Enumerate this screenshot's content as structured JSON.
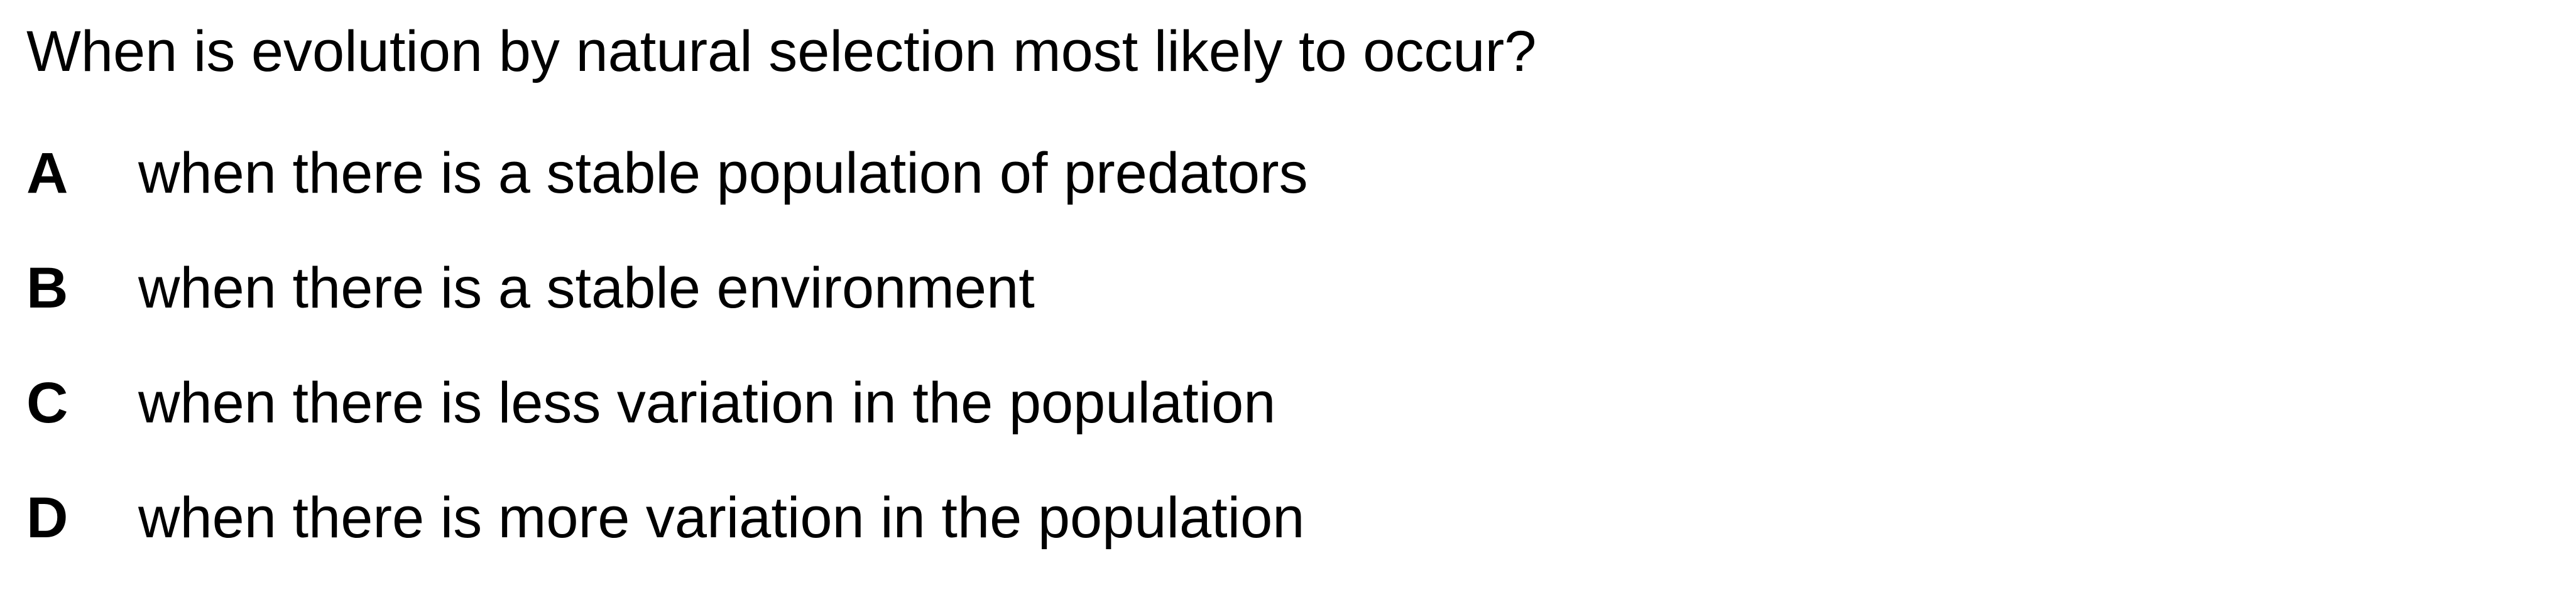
{
  "question": {
    "text": "When is evolution by natural selection most likely to occur?"
  },
  "options": [
    {
      "letter": "A",
      "text": "when there is a stable population of predators"
    },
    {
      "letter": "B",
      "text": "when there is a stable environment"
    },
    {
      "letter": "C",
      "text": "when there is less variation in the population"
    },
    {
      "letter": "D",
      "text": "when there is more variation in the population"
    }
  ]
}
